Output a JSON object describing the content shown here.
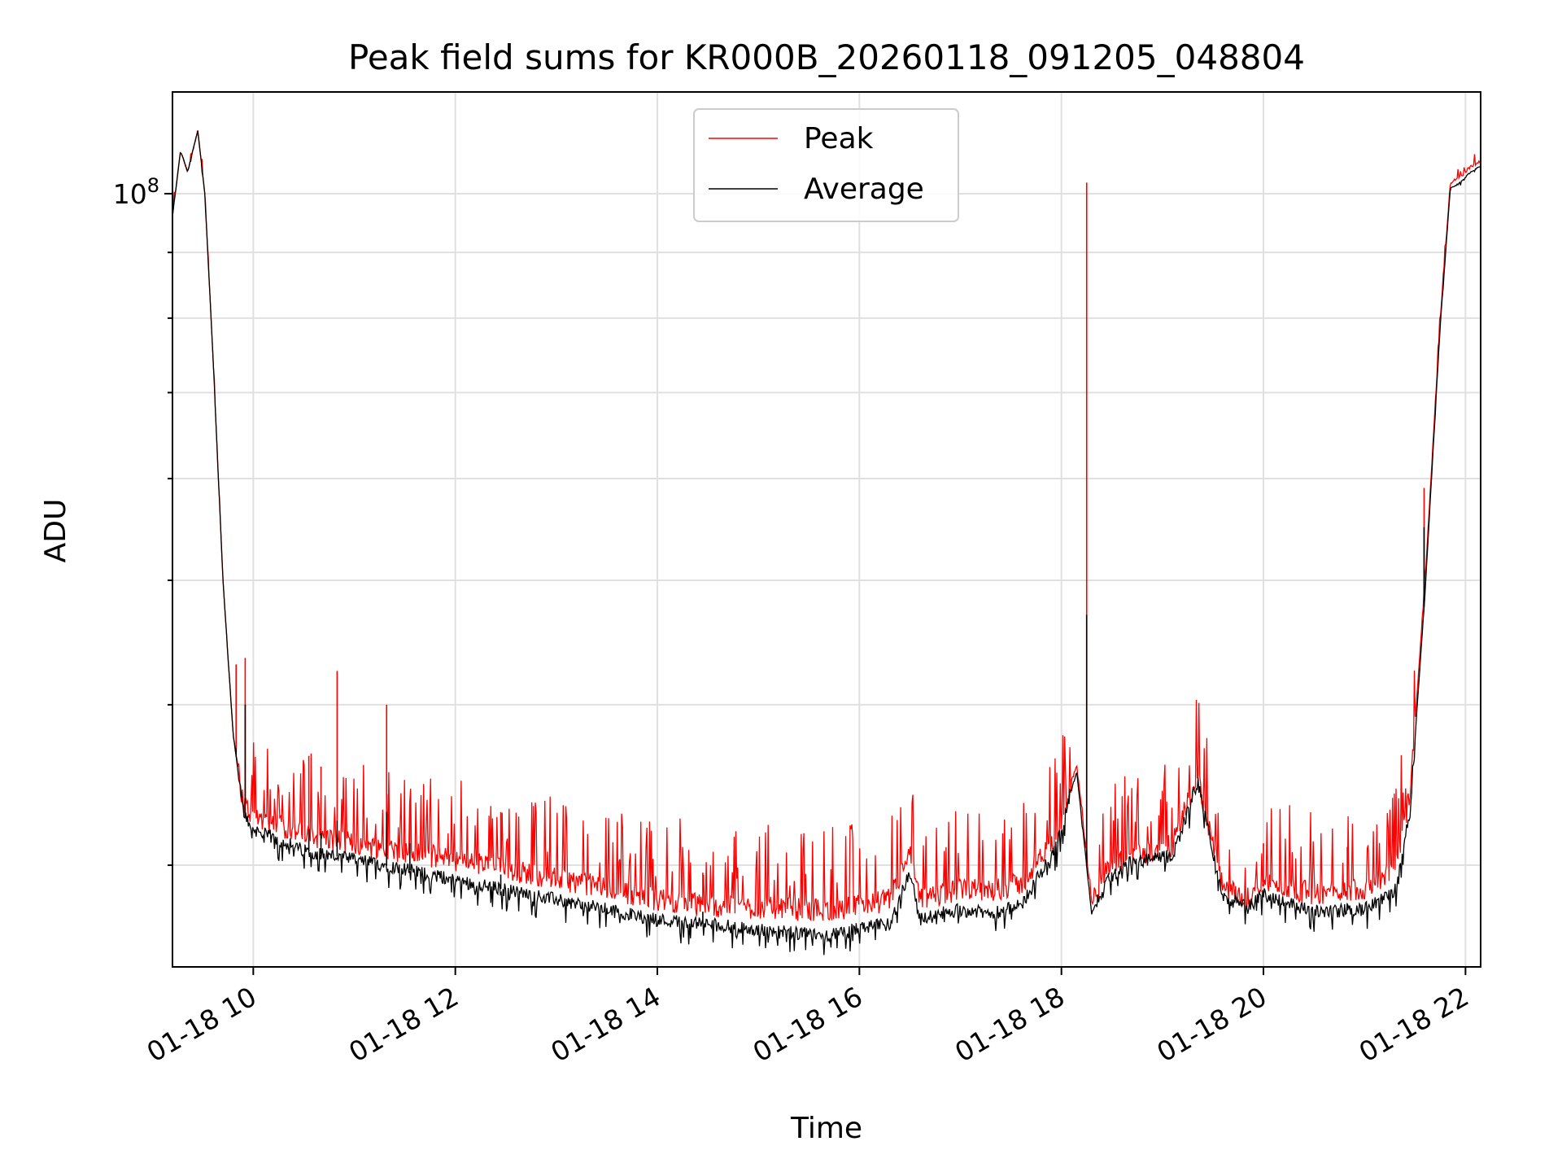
{
  "chart_data": {
    "type": "line",
    "title": "Peak field sums for KR000B_20260118_091205_048804",
    "xlabel": "Time",
    "ylabel": "ADU",
    "x_unit": "hours on 01-18",
    "xlim": [
      9.2,
      22.15
    ],
    "ylim": [
      25000000,
      120000000
    ],
    "yscale": "log",
    "grid": true,
    "legend_position": "upper center",
    "x_ticks": [
      10,
      12,
      14,
      16,
      18,
      20,
      22
    ],
    "x_tick_labels": [
      "01-18 10",
      "01-18 12",
      "01-18 14",
      "01-18 16",
      "01-18 18",
      "01-18 20",
      "01-18 22"
    ],
    "y_major_ticks": [
      100000000
    ],
    "y_major_tick_labels": [
      "10^8"
    ],
    "y_minor_ticks": [
      30000000,
      40000000,
      50000000,
      60000000,
      70000000,
      80000000,
      90000000
    ],
    "series": [
      {
        "name": "Peak",
        "color": "#ff0000",
        "x": [
          9.2,
          9.28,
          9.35,
          9.45,
          9.52,
          9.6,
          9.7,
          9.8,
          9.9,
          10.0,
          10.5,
          11.0,
          11.5,
          12.0,
          12.5,
          13.0,
          13.5,
          14.0,
          14.5,
          15.0,
          15.5,
          15.8,
          16.0,
          16.3,
          16.5,
          16.6,
          16.8,
          17.0,
          17.3,
          17.6,
          17.95,
          18.15,
          18.3,
          18.45,
          18.7,
          18.9,
          19.1,
          19.35,
          19.6,
          19.85,
          20.0,
          20.5,
          21.0,
          21.3,
          21.45,
          21.6,
          21.75,
          21.85,
          21.95,
          22.05,
          22.15
        ],
        "y": [
          96000000,
          108000000,
          104000000,
          112000000,
          100000000,
          75000000,
          50000000,
          38000000,
          33500000,
          32800000,
          31700000,
          31200000,
          30700000,
          30300000,
          29800000,
          29300000,
          28800000,
          28200000,
          27900000,
          27800000,
          27700000,
          27700000,
          27900000,
          28200000,
          30600000,
          28200000,
          28500000,
          28700000,
          28700000,
          29000000,
          31500000,
          36000000,
          28000000,
          29700000,
          30700000,
          30700000,
          31100000,
          35200000,
          28700000,
          28300000,
          29100000,
          28500000,
          28800000,
          29700000,
          34000000,
          50000000,
          80000000,
          102000000,
          103000000,
          105000000,
          106000000
        ]
      },
      {
        "name": "Average",
        "color": "#000000",
        "x": [
          9.2,
          9.28,
          9.35,
          9.45,
          9.52,
          9.6,
          9.7,
          9.8,
          9.9,
          10.0,
          10.5,
          11.0,
          11.5,
          12.0,
          12.5,
          13.0,
          13.5,
          14.0,
          14.5,
          15.0,
          15.5,
          15.8,
          16.0,
          16.3,
          16.5,
          16.6,
          16.8,
          17.0,
          17.3,
          17.6,
          17.95,
          18.15,
          18.3,
          18.45,
          18.7,
          18.9,
          19.1,
          19.35,
          19.6,
          19.85,
          20.0,
          20.5,
          21.0,
          21.3,
          21.45,
          21.6,
          21.75,
          21.85,
          21.95,
          22.05,
          22.15
        ],
        "y": [
          96000000,
          108000000,
          104000000,
          112000000,
          100000000,
          75000000,
          50000000,
          38000000,
          33000000,
          32000000,
          30800000,
          30300000,
          29800000,
          29200000,
          28700000,
          28200000,
          27700000,
          27200000,
          27000000,
          26700000,
          26500000,
          26500000,
          26800000,
          27000000,
          29700000,
          27200000,
          27500000,
          27700000,
          27500000,
          27900000,
          31000000,
          35500000,
          27500000,
          29200000,
          30200000,
          30300000,
          30500000,
          34800000,
          28300000,
          27800000,
          28500000,
          27600000,
          27700000,
          28600000,
          33000000,
          49000000,
          79000000,
          101000000,
          102000000,
          104000000,
          105000000
        ]
      }
    ],
    "spikes": [
      {
        "x": 9.83,
        "peak": 43000000,
        "avg": 37000000
      },
      {
        "x": 9.92,
        "peak": 43500000,
        "avg": 40000000
      },
      {
        "x": 10.55,
        "peak": 36500000,
        "avg": 32000000
      },
      {
        "x": 10.67,
        "peak": 35800000,
        "avg": 31800000
      },
      {
        "x": 10.83,
        "peak": 42500000,
        "avg": 32500000
      },
      {
        "x": 11.32,
        "peak": 40000000,
        "avg": 33000000
      },
      {
        "x": 11.55,
        "peak": 33500000,
        "avg": 31200000
      },
      {
        "x": 12.45,
        "peak": 33000000,
        "avg": 29500000
      },
      {
        "x": 14.45,
        "peak": 29600000,
        "avg": 27600000
      },
      {
        "x": 18.25,
        "peak": 102000000,
        "avg": 47000000
      },
      {
        "x": 19.35,
        "peak": 35800000,
        "avg": 34800000
      },
      {
        "x": 20.0,
        "peak": 31200000,
        "avg": 28500000
      },
      {
        "x": 20.83,
        "peak": 31000000,
        "avg": 28000000
      },
      {
        "x": 21.59,
        "peak": 59000000,
        "avg": 55000000
      }
    ]
  },
  "legend": {
    "peak_label": "Peak",
    "average_label": "Average"
  }
}
